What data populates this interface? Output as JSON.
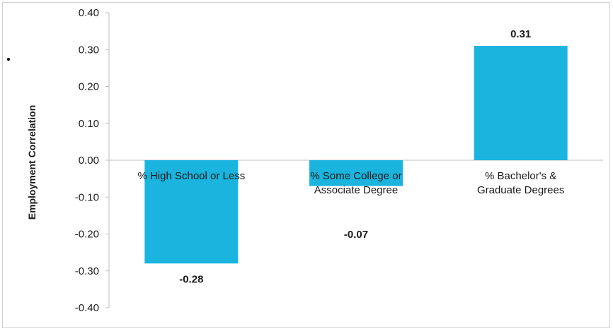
{
  "chart_data": {
    "type": "bar",
    "categories": [
      [
        "% High School or Less"
      ],
      [
        "% Some College or",
        "Associate Degree"
      ],
      [
        "% Bachelor's &",
        "Graduate Degrees"
      ]
    ],
    "values": [
      -0.28,
      -0.07,
      0.31
    ],
    "data_labels": [
      "-0.28",
      "-0.07",
      "0.31"
    ],
    "ylabel": "Employment Correlation",
    "ylim": [
      -0.4,
      0.4
    ],
    "yticks": [
      "0.40",
      "0.30",
      "0.20",
      "0.10",
      "0.00",
      "-0.10",
      "-0.20",
      "-0.30",
      "-0.40"
    ],
    "ytick_values": [
      0.4,
      0.3,
      0.2,
      0.1,
      0.0,
      -0.1,
      -0.2,
      -0.3,
      -0.4
    ],
    "grid": false,
    "legend": "none",
    "bar_color": "#1ab4de"
  }
}
